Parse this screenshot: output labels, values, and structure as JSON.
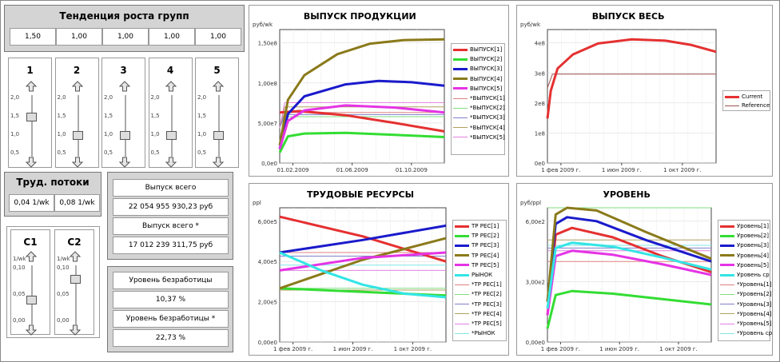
{
  "growth": {
    "title": "Тенденция роста групп",
    "values": [
      "1,50",
      "1,00",
      "1,00",
      "1,00",
      "1,00"
    ]
  },
  "sliders": {
    "groups": [
      {
        "label": "1",
        "value": 1.5
      },
      {
        "label": "2",
        "value": 1.0
      },
      {
        "label": "3",
        "value": 1.0
      },
      {
        "label": "4",
        "value": 1.0
      },
      {
        "label": "5",
        "value": 1.0
      }
    ],
    "group_ticks": [
      "2,0",
      "1,5",
      "1,0",
      "0,5"
    ],
    "group_range": [
      0.5,
      2.0
    ],
    "c": [
      {
        "label": "C1",
        "value": 0.04
      },
      {
        "label": "C2",
        "value": 0.08
      }
    ],
    "c_unit": "1/wk",
    "c_ticks": [
      "0,10",
      "0,05",
      "0,00"
    ],
    "c_range": [
      0.0,
      0.1
    ]
  },
  "labor_flows": {
    "title": "Труд. потоки",
    "values": [
      "0,04 1/wk",
      "0,08 1/wk"
    ]
  },
  "output_total": {
    "label1": "Выпуск всего",
    "value1": "22 054 955 930,23 руб",
    "label2": "Выпуск всего  *",
    "value2": "17 012 239 311,75 руб"
  },
  "unemployment": {
    "label1": "Уровень безработицы",
    "value1": "10,37 %",
    "label2": "Уровень безработицы  *",
    "value2": "22,73 %"
  },
  "chart_data": [
    {
      "type": "line",
      "title": "ВЫПУСК ПРОДУКЦИИ",
      "ylabel": "руб/wk",
      "ylim": [
        0,
        190000000
      ],
      "yticks": [
        "0,0e0",
        "5,00e7",
        "1,00e8",
        "1,50e8"
      ],
      "xticks": [
        "01.02.2009",
        "01.06.2009",
        "01.10.2009"
      ],
      "series": [
        {
          "name": "ВЫПУСК[1]",
          "color": "#e53030",
          "width": 3,
          "points": [
            [
              0,
              72000000
            ],
            [
              0.12,
              74000000
            ],
            [
              0.4,
              68000000
            ],
            [
              0.7,
              57000000
            ],
            [
              1,
              45000000
            ]
          ]
        },
        {
          "name": "ВЫПУСК[2]",
          "color": "#33dd33",
          "width": 3,
          "points": [
            [
              0,
              15000000
            ],
            [
              0.05,
              38000000
            ],
            [
              0.15,
              42000000
            ],
            [
              0.4,
              43000000
            ],
            [
              0.7,
              40000000
            ],
            [
              1,
              37000000
            ]
          ]
        },
        {
          "name": "ВЫПУСК[3]",
          "color": "#1a1acc",
          "width": 3,
          "points": [
            [
              0,
              20000000
            ],
            [
              0.05,
              70000000
            ],
            [
              0.15,
              95000000
            ],
            [
              0.4,
              112000000
            ],
            [
              0.6,
              117000000
            ],
            [
              0.8,
              115000000
            ],
            [
              1,
              110000000
            ]
          ]
        },
        {
          "name": "ВЫПУСК[4]",
          "color": "#8a7a1a",
          "width": 3,
          "points": [
            [
              0,
              25000000
            ],
            [
              0.05,
              90000000
            ],
            [
              0.15,
              125000000
            ],
            [
              0.35,
              155000000
            ],
            [
              0.55,
              170000000
            ],
            [
              0.75,
              175000000
            ],
            [
              1,
              176000000
            ]
          ]
        },
        {
          "name": "ВЫПУСК[5]",
          "color": "#e533e5",
          "width": 3,
          "points": [
            [
              0,
              20000000
            ],
            [
              0.05,
              60000000
            ],
            [
              0.15,
              75000000
            ],
            [
              0.4,
              82000000
            ],
            [
              0.7,
              79000000
            ],
            [
              1,
              72000000
            ]
          ]
        },
        {
          "name": "*ВЫПУСК[1]",
          "color": "#e08080",
          "width": 1,
          "points": [
            [
              0,
              50000000
            ],
            [
              0.03,
              72000000
            ],
            [
              1,
              72000000
            ]
          ]
        },
        {
          "name": "*ВЫПУСК[2]",
          "color": "#80dd80",
          "width": 1,
          "points": [
            [
              0,
              50000000
            ],
            [
              0.03,
              66000000
            ],
            [
              1,
              66000000
            ]
          ]
        },
        {
          "name": "*ВЫПУСК[3]",
          "color": "#8080cc",
          "width": 1,
          "points": [
            [
              0,
              50000000
            ],
            [
              0.03,
              69000000
            ],
            [
              1,
              69000000
            ]
          ]
        },
        {
          "name": "*ВЫПУСК[4]",
          "color": "#b0a060",
          "width": 1,
          "points": [
            [
              0,
              50000000
            ],
            [
              0.03,
              80000000
            ],
            [
              1,
              80000000
            ]
          ]
        },
        {
          "name": "*ВЫПУСК[5]",
          "color": "#e080e0",
          "width": 1,
          "points": [
            [
              0,
              50000000
            ],
            [
              0.03,
              86000000
            ],
            [
              1,
              86000000
            ]
          ]
        }
      ]
    },
    {
      "type": "line",
      "title": "ВЫПУСК ВЕСЬ",
      "ylabel": "руб/wk",
      "ylim": [
        0,
        480000000
      ],
      "yticks": [
        "0e0",
        "1e8",
        "2e8",
        "3e8",
        "4e8"
      ],
      "xticks": [
        "1 фев 2009 г.",
        "1 июн 2009 г.",
        "1 окт 2009 г."
      ],
      "series": [
        {
          "name": "Current",
          "color": "#e53030",
          "width": 3,
          "points": [
            [
              0,
              160000000
            ],
            [
              0.02,
              260000000
            ],
            [
              0.06,
              340000000
            ],
            [
              0.15,
              390000000
            ],
            [
              0.3,
              430000000
            ],
            [
              0.5,
              445000000
            ],
            [
              0.7,
              440000000
            ],
            [
              0.85,
              425000000
            ],
            [
              1,
              400000000
            ]
          ]
        },
        {
          "name": "Reference",
          "color": "#a05050",
          "width": 1,
          "points": [
            [
              0,
              270000000
            ],
            [
              0.03,
              320000000
            ],
            [
              1,
              320000000
            ]
          ]
        }
      ]
    },
    {
      "type": "line",
      "title": "ТРУДОВЫЕ РЕСУРСЫ",
      "ylabel": "ppl",
      "ylim": [
        0,
        750000
      ],
      "yticks": [
        "0,00e0",
        "2,00e5",
        "4,00e5",
        "6,00e5"
      ],
      "xticks": [
        "1 фев 2009 г.",
        "1 июн 2009 г.",
        "1 окт 2009 г."
      ],
      "series": [
        {
          "name": "ТР РЕС[1]",
          "color": "#e53030",
          "width": 3,
          "points": [
            [
              0,
              700000
            ],
            [
              0.5,
              590000
            ],
            [
              1,
              450000
            ]
          ]
        },
        {
          "name": "ТР РЕС[2]",
          "color": "#33dd33",
          "width": 3,
          "points": [
            [
              0,
              300000
            ],
            [
              0.5,
              280000
            ],
            [
              1,
              260000
            ]
          ]
        },
        {
          "name": "ТР РЕС[3]",
          "color": "#1a1acc",
          "width": 3,
          "points": [
            [
              0,
              500000
            ],
            [
              0.5,
              570000
            ],
            [
              1,
              650000
            ]
          ]
        },
        {
          "name": "ТР РЕС[4]",
          "color": "#8a7a1a",
          "width": 3,
          "points": [
            [
              0,
              300000
            ],
            [
              0.5,
              460000
            ],
            [
              1,
              580000
            ]
          ]
        },
        {
          "name": "ТР РЕС[5]",
          "color": "#e533e5",
          "width": 3,
          "points": [
            [
              0,
              400000
            ],
            [
              0.5,
              470000
            ],
            [
              1,
              500000
            ]
          ]
        },
        {
          "name": "РЫНОК",
          "color": "#33e5e5",
          "width": 3,
          "points": [
            [
              0,
              500000
            ],
            [
              0.25,
              400000
            ],
            [
              0.5,
              320000
            ],
            [
              0.75,
              270000
            ],
            [
              1,
              250000
            ]
          ]
        },
        {
          "name": "*ТР РЕС[1]",
          "color": "#e08080",
          "width": 1,
          "points": [
            [
              0,
              500000
            ],
            [
              1,
              500000
            ]
          ]
        },
        {
          "name": "*ТР РЕС[2]",
          "color": "#80dd80",
          "width": 1,
          "points": [
            [
              0,
              300000
            ],
            [
              1,
              300000
            ]
          ]
        },
        {
          "name": "*ТР РЕС[3]",
          "color": "#8080cc",
          "width": 1,
          "points": [
            [
              0,
              480000
            ],
            [
              1,
              480000
            ]
          ]
        },
        {
          "name": "*ТР РЕС[4]",
          "color": "#b0a060",
          "width": 1,
          "points": [
            [
              0,
              290000
            ],
            [
              1,
              290000
            ]
          ]
        },
        {
          "name": "*ТР РЕС[5]",
          "color": "#e080e0",
          "width": 1,
          "points": [
            [
              0,
              400000
            ],
            [
              1,
              400000
            ]
          ]
        },
        {
          "name": "*РЫНОК",
          "color": "#80e5e5",
          "width": 1,
          "points": [
            [
              0,
              430000
            ],
            [
              1,
              430000
            ]
          ]
        }
      ]
    },
    {
      "type": "line",
      "title": "УРОВЕНЬ",
      "ylabel": "руб/ppl",
      "ylim": [
        0,
        1000
      ],
      "yticks": [
        "0,00e0",
        "3,00e2",
        "6,00e2"
      ],
      "xticks": [
        "1 фев 2009 г.",
        "1 июн 2009 г.",
        "1 окт 2009 г."
      ],
      "series": [
        {
          "name": "Уровень[1]",
          "color": "#e53030",
          "width": 3,
          "points": [
            [
              0,
              200
            ],
            [
              0.05,
              800
            ],
            [
              0.15,
              850
            ],
            [
              0.4,
              780
            ],
            [
              0.7,
              640
            ],
            [
              1,
              520
            ]
          ]
        },
        {
          "name": "Уровень[2]",
          "color": "#33dd33",
          "width": 3,
          "points": [
            [
              0,
              100
            ],
            [
              0.05,
              350
            ],
            [
              0.15,
              380
            ],
            [
              0.4,
              360
            ],
            [
              0.7,
              320
            ],
            [
              1,
              280
            ]
          ]
        },
        {
          "name": "Уровень[3]",
          "color": "#1a1acc",
          "width": 3,
          "points": [
            [
              0,
              300
            ],
            [
              0.05,
              880
            ],
            [
              0.12,
              930
            ],
            [
              0.3,
              900
            ],
            [
              0.6,
              760
            ],
            [
              1,
              600
            ]
          ]
        },
        {
          "name": "Уровень[4]",
          "color": "#8a7a1a",
          "width": 3,
          "points": [
            [
              0,
              300
            ],
            [
              0.05,
              950
            ],
            [
              0.12,
              1000
            ],
            [
              0.3,
              980
            ],
            [
              0.6,
              820
            ],
            [
              1,
              620
            ]
          ]
        },
        {
          "name": "Уровень[5]",
          "color": "#e533e5",
          "width": 3,
          "points": [
            [
              0,
              200
            ],
            [
              0.05,
              640
            ],
            [
              0.15,
              680
            ],
            [
              0.4,
              650
            ],
            [
              0.7,
              580
            ],
            [
              1,
              500
            ]
          ]
        },
        {
          "name": "Уровень ср",
          "color": "#33e5e5",
          "width": 3,
          "points": [
            [
              0,
              250
            ],
            [
              0.05,
              700
            ],
            [
              0.15,
              740
            ],
            [
              0.4,
              710
            ],
            [
              0.7,
              630
            ],
            [
              1,
              540
            ]
          ]
        },
        {
          "name": "*Уровень[1]",
          "color": "#e08080",
          "width": 1,
          "points": [
            [
              0,
              600
            ],
            [
              1,
              600
            ]
          ]
        },
        {
          "name": "*Уровень[2]",
          "color": "#80dd80",
          "width": 1,
          "points": [
            [
              0,
              1000
            ],
            [
              1,
              1000
            ]
          ]
        },
        {
          "name": "*Уровень[3]",
          "color": "#8080cc",
          "width": 1,
          "points": [
            [
              0,
              700
            ],
            [
              1,
              700
            ]
          ]
        },
        {
          "name": "*Уровень[4]",
          "color": "#b0a060",
          "width": 1,
          "points": [
            [
              0,
              760
            ],
            [
              1,
              760
            ]
          ]
        },
        {
          "name": "*Уровень[5]",
          "color": "#e080e0",
          "width": 1,
          "points": [
            [
              0,
              680
            ],
            [
              1,
              680
            ]
          ]
        },
        {
          "name": "*Уровень ср",
          "color": "#80e5e5",
          "width": 1,
          "points": [
            [
              0,
              720
            ],
            [
              1,
              720
            ]
          ]
        }
      ]
    }
  ]
}
